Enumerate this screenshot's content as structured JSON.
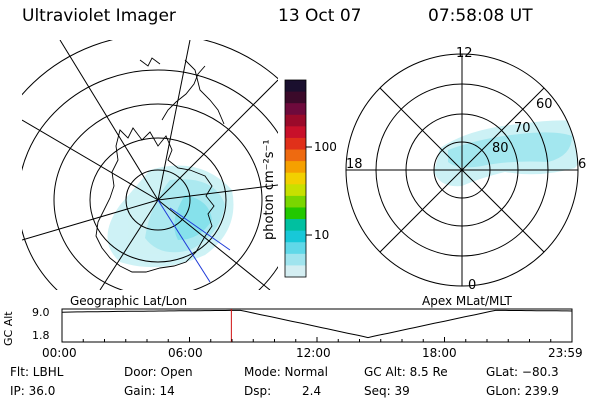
{
  "header": {
    "title": "Ultraviolet Imager",
    "date": "13 Oct 07",
    "time": "07:58:08 UT"
  },
  "left_map": {
    "caption": "Geographic Lat/Lon"
  },
  "right_map": {
    "caption": "Apex MLat/MLT",
    "mlt_labels": [
      "12",
      "18",
      "6",
      "0"
    ],
    "lat_labels": [
      "60",
      "70",
      "80"
    ]
  },
  "colorbar": {
    "unit_label": "photon cm⁻²s⁻¹",
    "tick_labels": [
      "100",
      "10"
    ],
    "colors": [
      "#1a0f2e",
      "#3b0a2a",
      "#6e0a3c",
      "#9a0a2a",
      "#c8102a",
      "#e0301a",
      "#ee6a10",
      "#f5a000",
      "#f2d000",
      "#c8e000",
      "#7ad600",
      "#22c800",
      "#00c0a0",
      "#18c8d8",
      "#60d8e8",
      "#a0e4ee",
      "#d4eef2"
    ]
  },
  "altitude_plot": {
    "ylabel": "GC Alt",
    "y_ticks": [
      "9.0",
      "1.8"
    ],
    "x_ticks": [
      "00:00",
      "06:00",
      "12:00",
      "18:00",
      "23:59"
    ],
    "current_marker_color": "#d01010"
  },
  "footer": {
    "flt": "Flt: LBHL",
    "ip": "IP: 36.0",
    "door": "Door: Open",
    "gain": "Gain: 14",
    "mode": "Mode: Normal",
    "dsp": "Dsp:",
    "dsp_val": "2.4",
    "gc_alt": "GC Alt: 8.5 Re",
    "seq": "Seq: 39",
    "glat": "GLat: −80.3",
    "glon": "GLon: 239.9"
  }
}
